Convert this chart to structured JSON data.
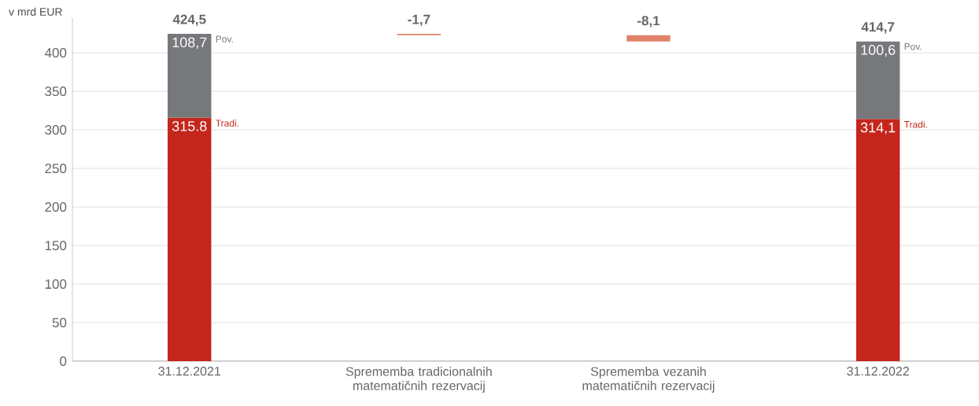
{
  "chart_data": {
    "type": "bar",
    "stacked": true,
    "ylabel": "v mrd EUR",
    "grid": "y",
    "categories": [
      "31.12.2021",
      "Sprememba tradicionalnih matematičnih rezervacij",
      "Sprememba vezanih matematičnih rezervacij",
      "31.12.2022"
    ],
    "ylim": [
      0,
      445
    ],
    "yticks": [
      0,
      50,
      100,
      150,
      200,
      250,
      300,
      350,
      400
    ],
    "series": [
      {
        "name": "Tradi.",
        "color": "#c4261d",
        "values": [
          315.8,
          null,
          null,
          314.1
        ],
        "value_labels": [
          "315.8",
          null,
          null,
          "314,1"
        ]
      },
      {
        "name": "Pov.",
        "color": "#77787b",
        "values": [
          108.7,
          null,
          null,
          100.6
        ],
        "value_labels": [
          "108,7",
          null,
          null,
          "100,6"
        ]
      },
      {
        "color": "#e0836a",
        "values": [
          null,
          -1.7,
          -8.1,
          null
        ],
        "base": [
          null,
          424.5,
          422.8,
          null
        ],
        "value_labels": [
          null,
          "-1,7",
          "-8,1",
          null
        ]
      }
    ],
    "totals": [
      "424,5",
      null,
      null,
      "414,7"
    ]
  }
}
